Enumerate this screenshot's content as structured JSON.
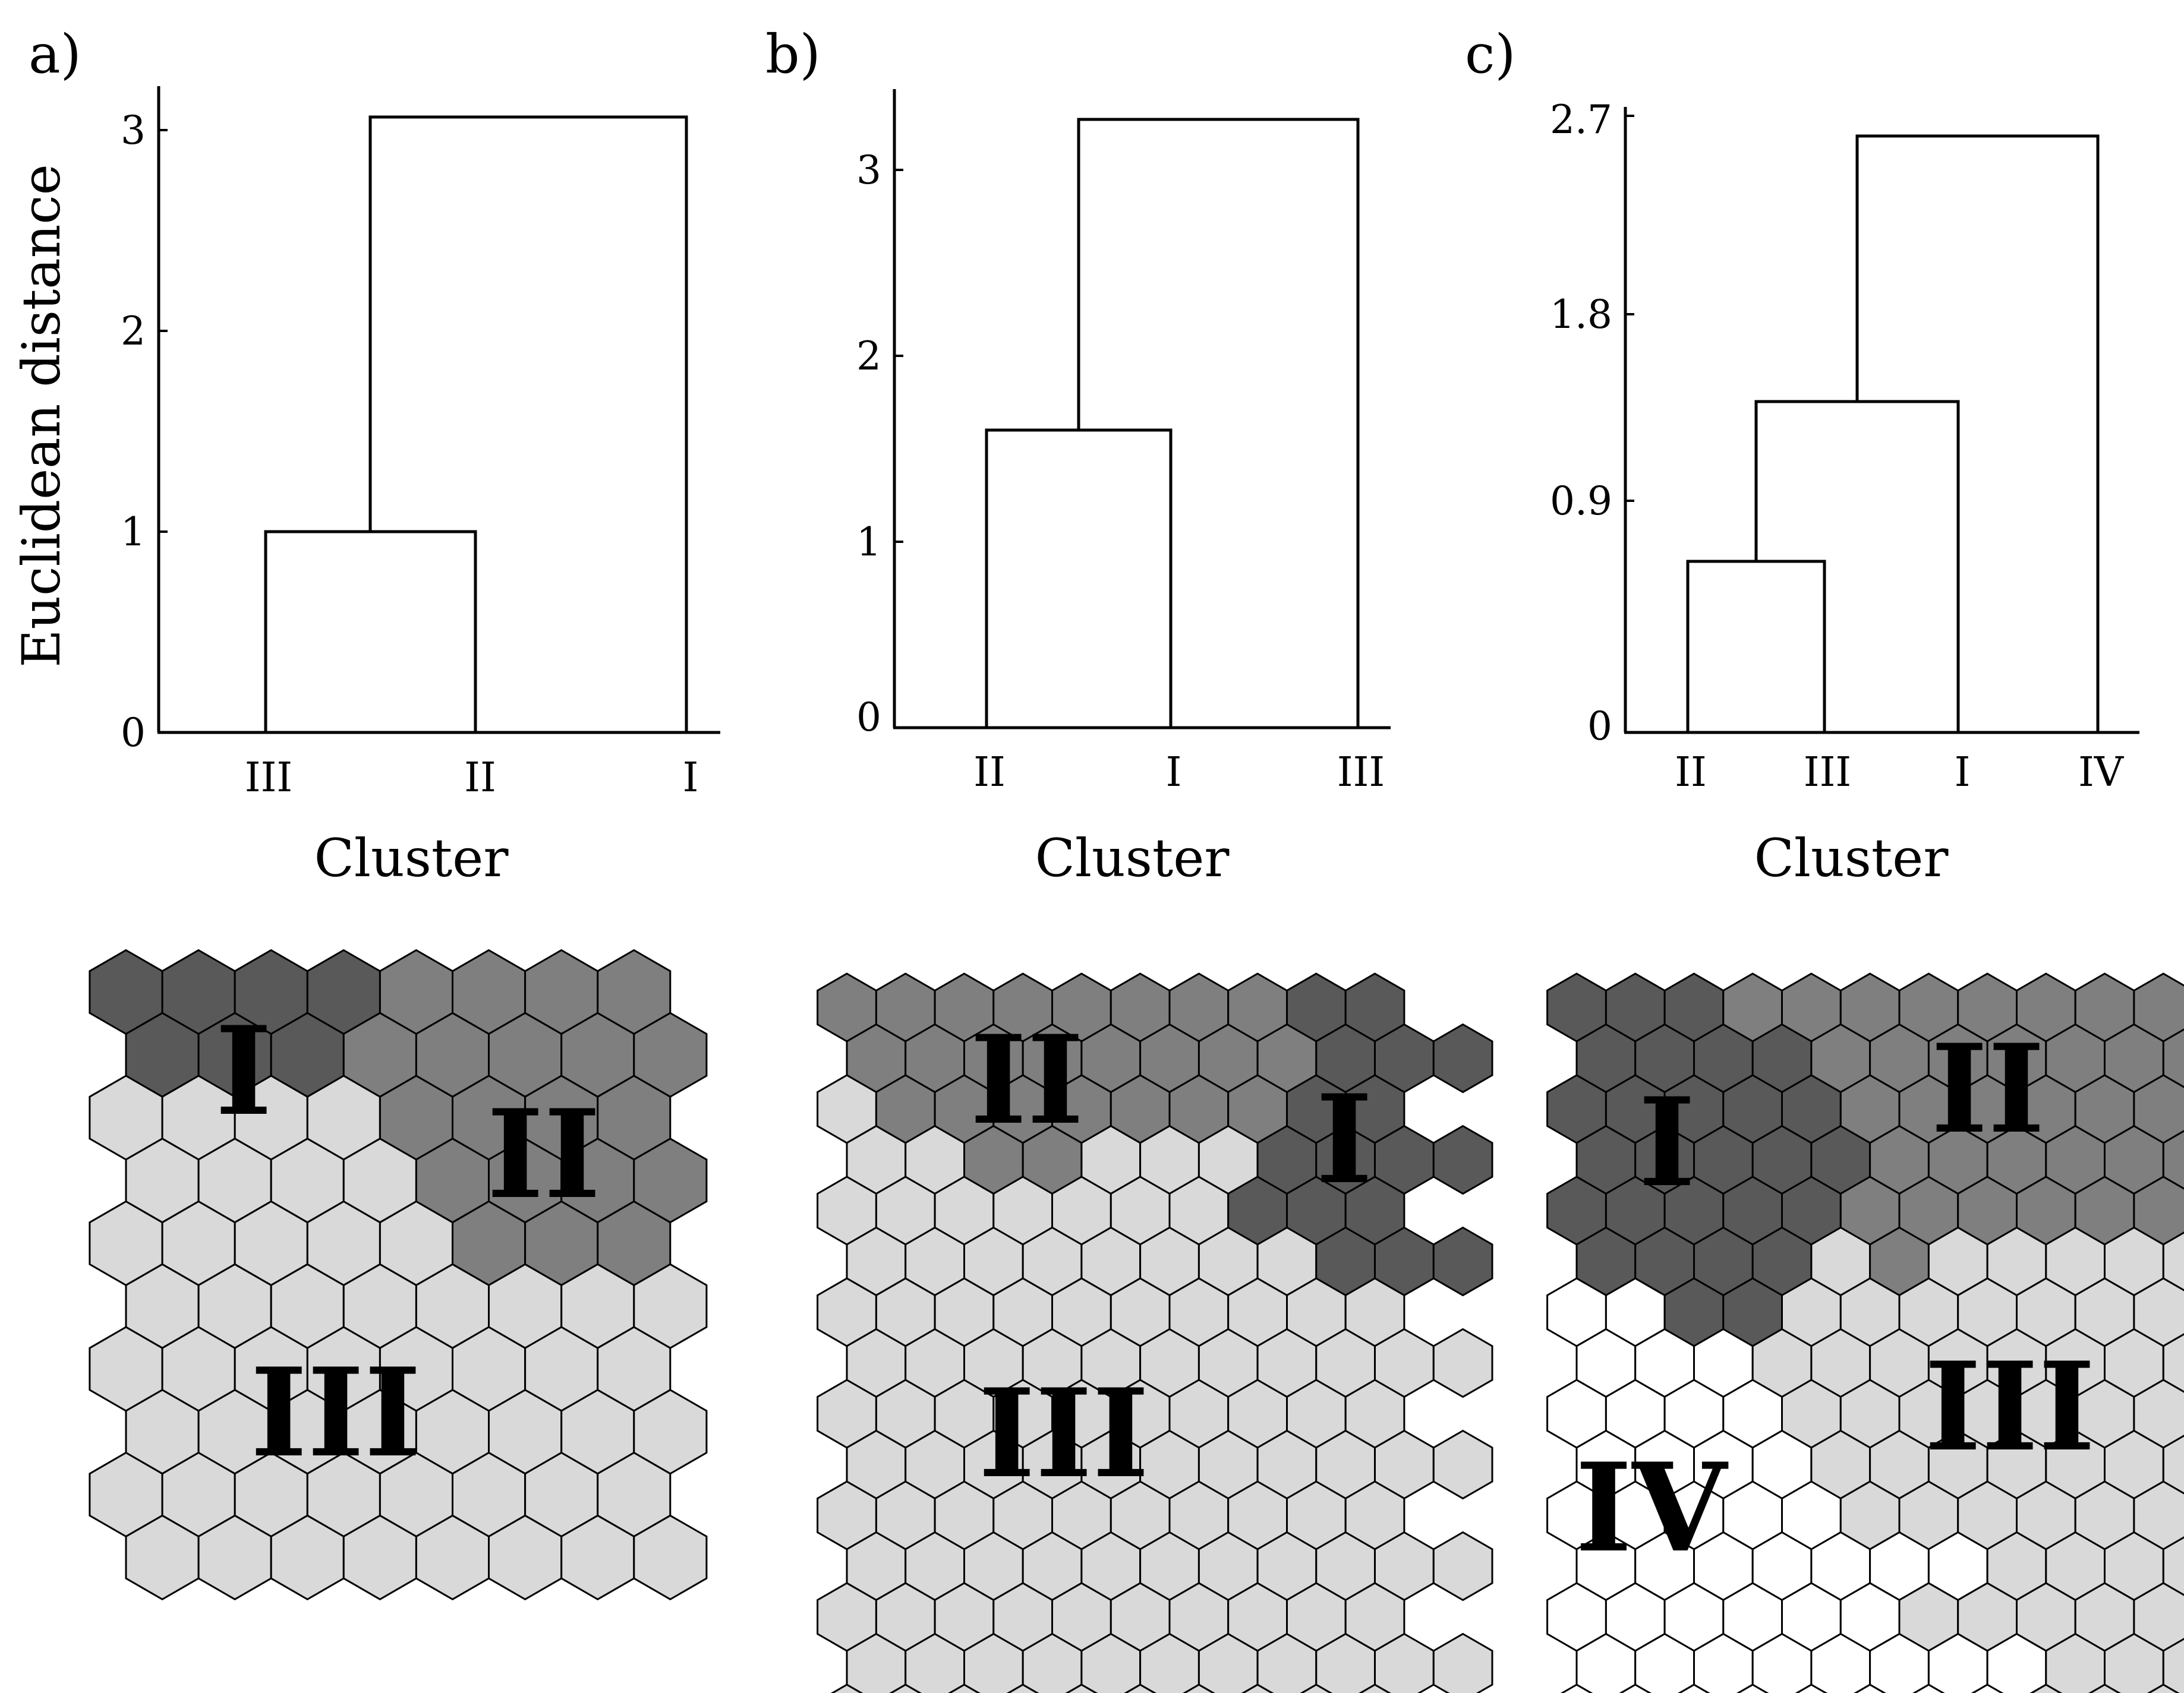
{
  "colors": {
    "dark": "#595959",
    "mid": "#7f7f7f",
    "light": "#d9d9d9",
    "white": "#ffffff",
    "line": "#000000"
  },
  "panels": [
    {
      "letter": "a)",
      "ylabel": "Euclidean distance",
      "xlabel": "Cluster",
      "yticks": [
        "0",
        "1",
        "2",
        "3"
      ],
      "leaves": [
        "III",
        "II",
        "I"
      ],
      "merges": [
        {
          "a": "III",
          "b": "II",
          "height": 1.0
        },
        {
          "a": "III+II",
          "b": "I",
          "height": 3.05
        }
      ],
      "map": {
        "rows": [
          "DDDDMMMM",
          "DDDMMMMM",
          "LLLLMMMM",
          "LLLLMMMM",
          "LLLLLMMM",
          "LLLLLLLL",
          "LLLLLLLL",
          "LLLLLLLL",
          "LLLLLLLL",
          "LLLLLLLL"
        ],
        "labels": [
          "I",
          "II",
          "III"
        ]
      }
    },
    {
      "letter": "b)",
      "ylabel": "",
      "xlabel": "Cluster",
      "yticks": [
        "0",
        "1",
        "2",
        "3"
      ],
      "leaves": [
        "II",
        "I",
        "III"
      ],
      "merges": [
        {
          "a": "II",
          "b": "I",
          "height": 1.6
        },
        {
          "a": "II+I",
          "b": "III",
          "height": 3.25
        }
      ],
      "map": {
        "rows": [
          "MMMMMMMMDD",
          "MMMMMMMMDDD",
          "LMMMMMMMDD",
          "LLMMLLLDDDD",
          "LLLLLLLDDD",
          "LLLLLLLLDDD",
          "LLLLLLLLLL",
          "LLLLLLLLLLL",
          "LLLLLLLLLL",
          "LLLLLLLLLLL",
          "LLLLLLLLLL",
          "LLLLLLLLLLL",
          "LLLLLLLLLL",
          "LLLLLLLLLLL",
          "LLLLLLLLLL"
        ],
        "labels": [
          "II",
          "I",
          "III"
        ]
      }
    },
    {
      "letter": "c)",
      "ylabel": "",
      "xlabel": "Cluster",
      "yticks": [
        "0",
        "0.9",
        "1.8",
        "2.7"
      ],
      "leaves": [
        "II",
        "III",
        "I",
        "IV"
      ],
      "merges": [
        {
          "a": "II",
          "b": "III",
          "height": 0.6
        },
        {
          "a": "II+III",
          "b": "I",
          "height": 1.4
        },
        {
          "a": "II+III+I",
          "b": "IV",
          "height": 2.6
        }
      ],
      "map": {
        "rows": [
          "DDDMMMMMMMM",
          "DDDDMMMMMMM",
          "DDDDDMMMMMM",
          "DDDDDMMMMMM",
          "DDDDDMMMMMM",
          "DDDDLMLLLLL",
          "WWDDLLLLLLL",
          "WWWLLLLLLLL",
          "WWWWLLLLLLL",
          "WWWWLLLLLLL",
          "WWWWWLLLLLL",
          "WWWWWWWLLLL",
          "WWWWWWLLLLL",
          "WWWWWWWWLLL",
          "WWWWWWWWLLL"
        ],
        "labels": [
          "I",
          "II",
          "III",
          "IV"
        ]
      }
    }
  ]
}
